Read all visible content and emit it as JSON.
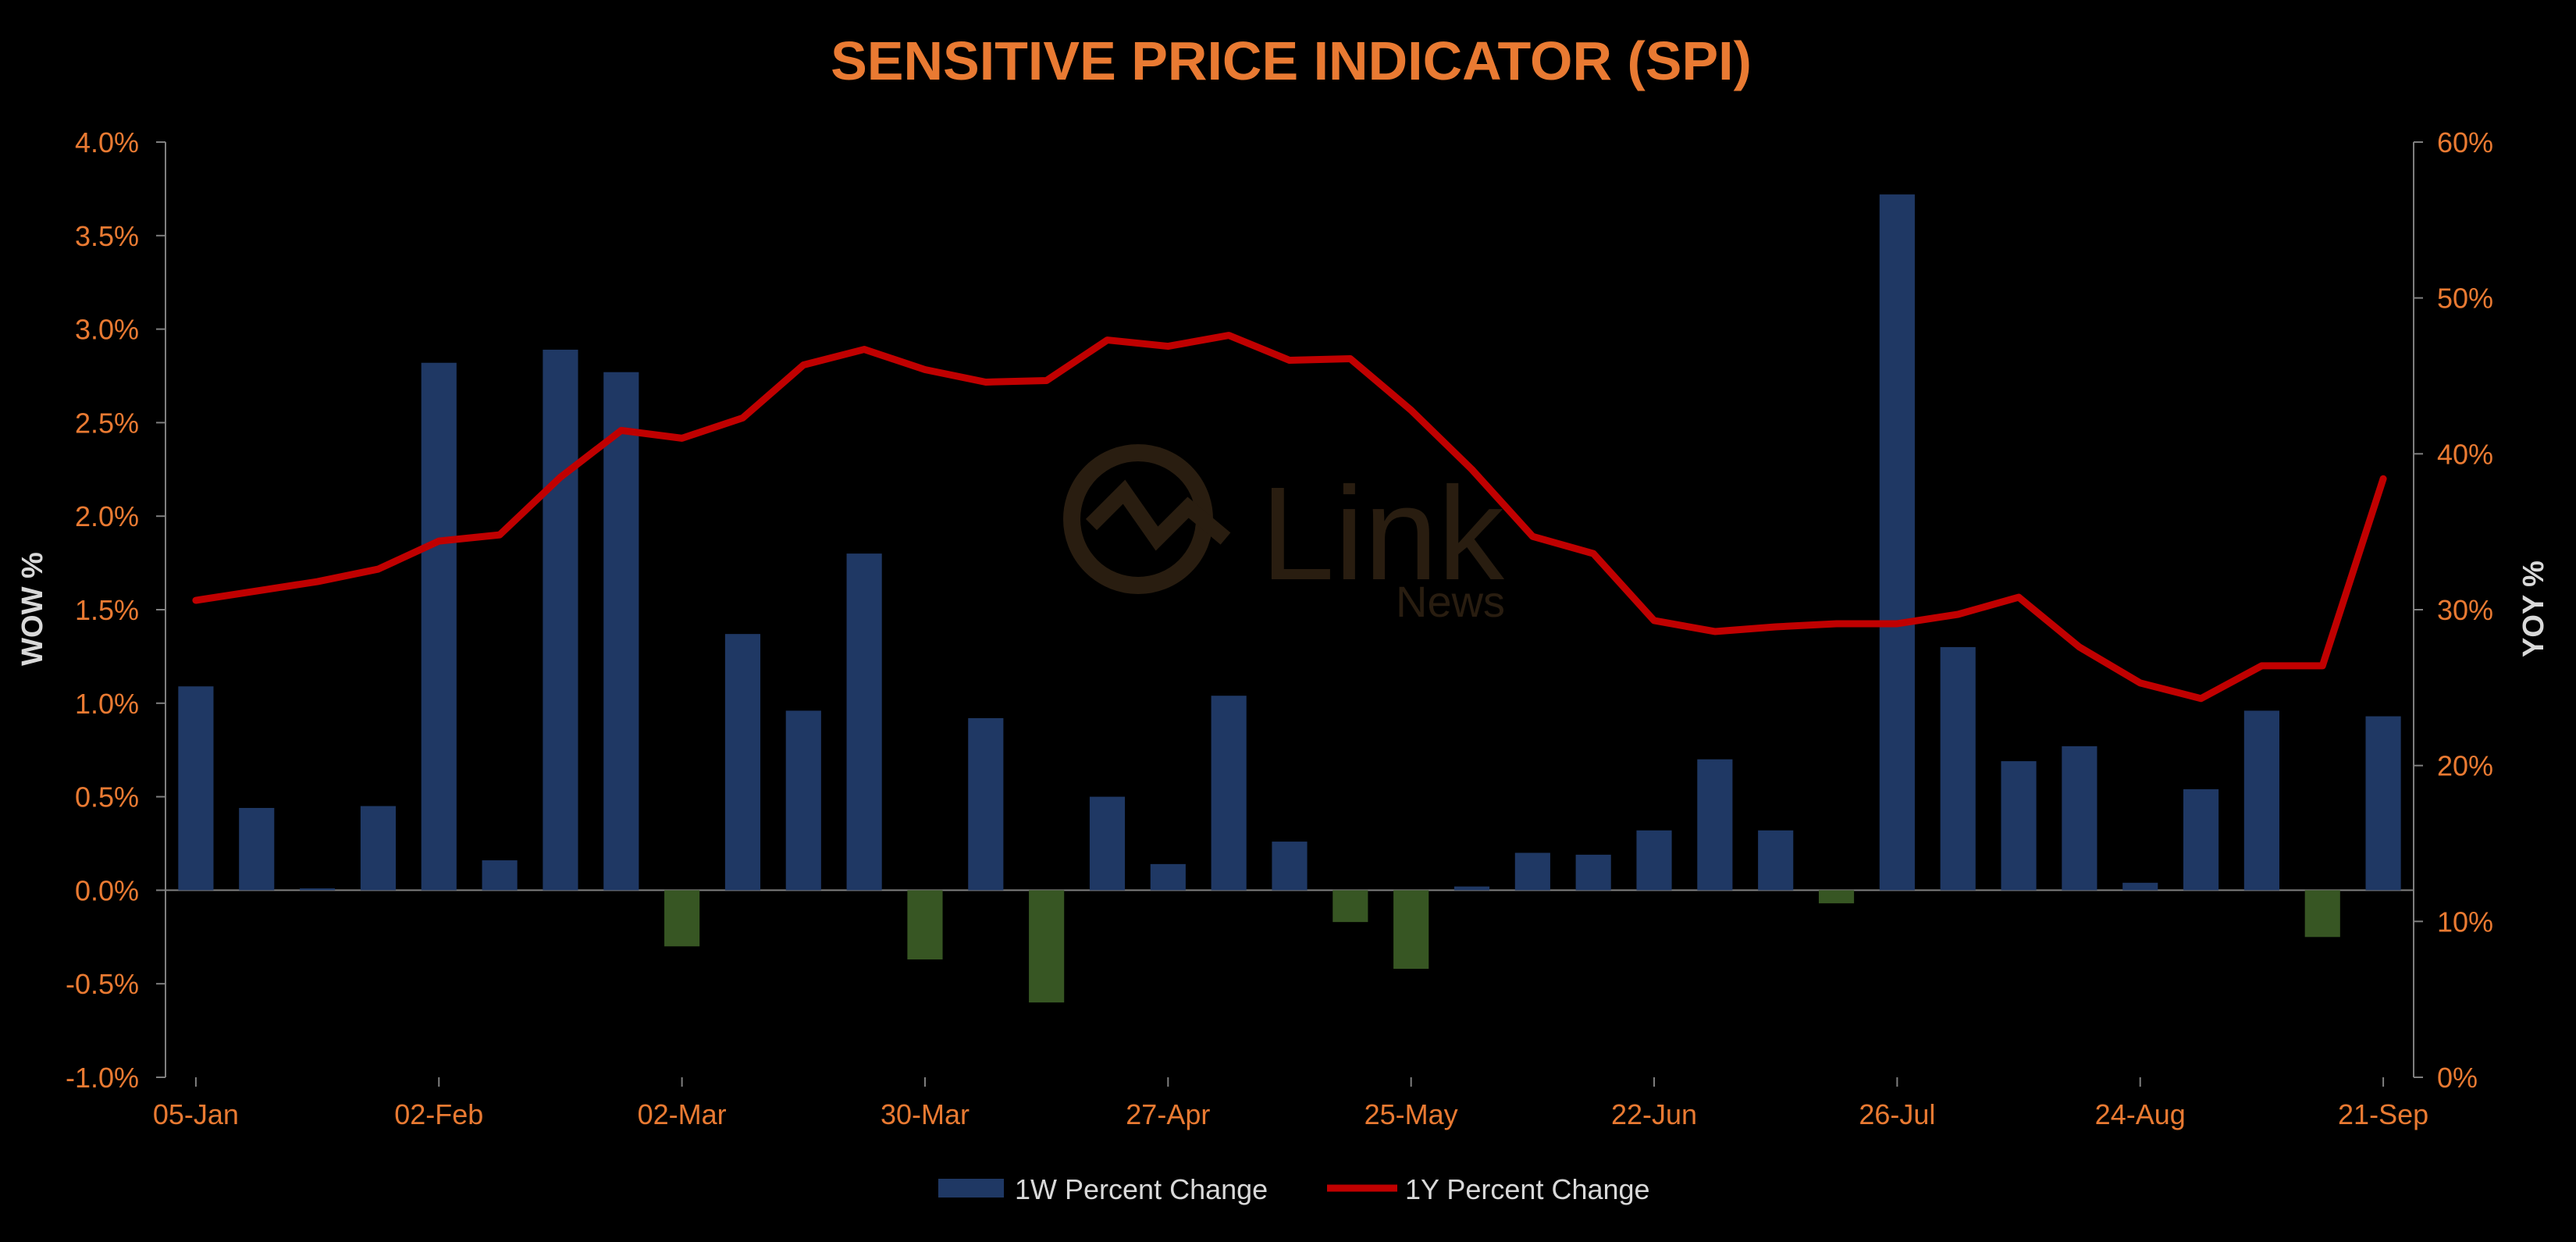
{
  "chart_data": {
    "type": "bar",
    "title": "SENSITIVE PRICE INDICATOR (SPI)",
    "ylabel_left": "WOW %",
    "ylabel_right": "YOY %",
    "ylim_left": [
      -1.0,
      4.0
    ],
    "ylim_right": [
      0,
      60
    ],
    "yticks_left": [
      "-1.0%",
      "-0.5%",
      "0.0%",
      "0.5%",
      "1.0%",
      "1.5%",
      "2.0%",
      "2.5%",
      "3.0%",
      "3.5%",
      "4.0%"
    ],
    "yticks_right": [
      "0%",
      "10%",
      "20%",
      "30%",
      "40%",
      "50%",
      "60%"
    ],
    "xtick_labels": [
      "05-Jan",
      "02-Feb",
      "02-Mar",
      "30-Mar",
      "27-Apr",
      "25-May",
      "22-Jun",
      "26-Jul",
      "24-Aug",
      "21-Sep"
    ],
    "xtick_positions": [
      0,
      4,
      8,
      12,
      16,
      20,
      24,
      28,
      32,
      36
    ],
    "grid": false,
    "legend_placement": "bottom",
    "colors": {
      "title": "#e97a32",
      "tick_text": "#e97a32",
      "axis_title": "#d9d9d9",
      "legend_text": "#d9d9d9",
      "bar_positive": "#1f3864",
      "bar_negative": "#375623",
      "line": "#c00000",
      "axis": "#7f7f7f"
    },
    "series": [
      {
        "name": "1W Percent Change",
        "type": "bar",
        "axis": "left",
        "values": [
          1.09,
          0.44,
          0.01,
          0.45,
          2.82,
          0.16,
          2.89,
          2.77,
          -0.3,
          1.37,
          0.96,
          1.8,
          -0.37,
          0.92,
          -0.6,
          0.5,
          0.14,
          1.04,
          0.26,
          -0.17,
          -0.42,
          0.02,
          0.2,
          0.19,
          0.32,
          0.7,
          0.32,
          -0.07,
          3.72,
          1.3,
          0.69,
          0.77,
          0.04,
          0.54,
          0.96,
          -0.25,
          0.93
        ]
      },
      {
        "name": "1Y Percent Change",
        "type": "line",
        "axis": "right",
        "values": [
          30.6,
          31.2,
          31.8,
          32.6,
          34.4,
          34.8,
          38.5,
          41.5,
          41.0,
          42.3,
          45.7,
          46.7,
          45.4,
          44.6,
          44.7,
          47.3,
          46.9,
          47.6,
          46.0,
          46.1,
          42.8,
          39.0,
          34.7,
          33.6,
          29.3,
          28.6,
          28.9,
          29.1,
          29.1,
          29.7,
          30.8,
          27.6,
          25.3,
          24.3,
          26.4,
          26.4,
          38.4
        ]
      }
    ]
  },
  "watermark": {
    "name": "Link",
    "sub": "News"
  }
}
